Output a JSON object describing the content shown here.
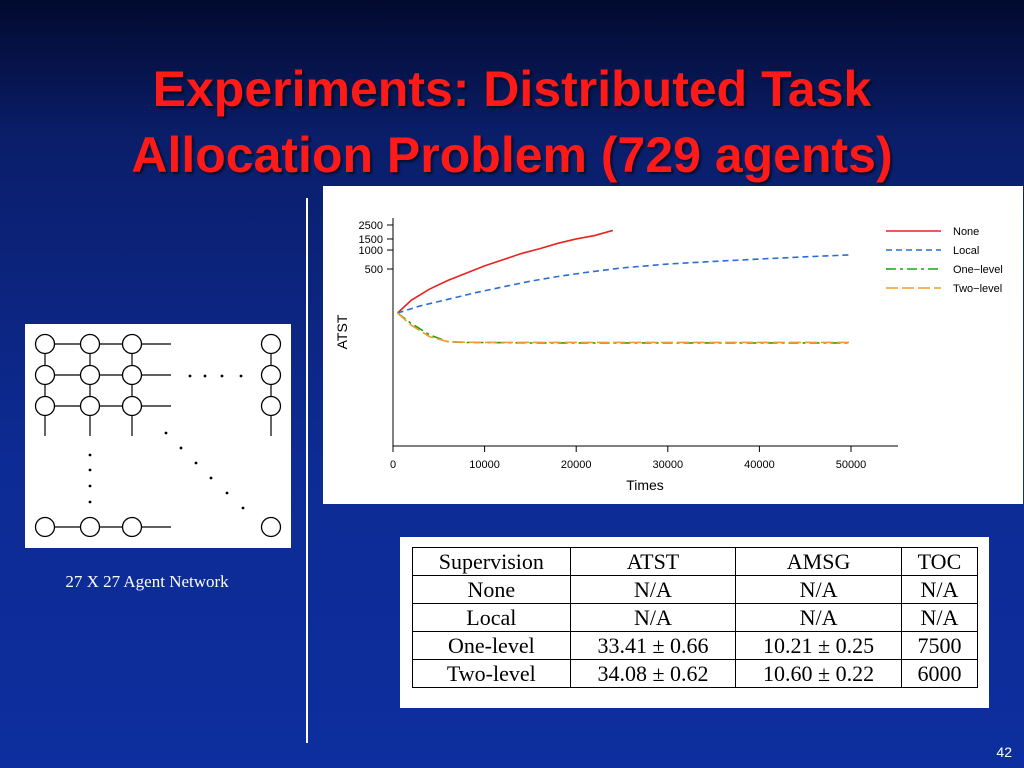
{
  "slide": {
    "title_line1": "Experiments: Distributed Task",
    "title_line2": "Allocation Problem (729 agents)",
    "network_caption": "27 X 27 Agent Network",
    "page_number": "42"
  },
  "colors": {
    "title": "#ff1a1a",
    "background": "#0d2b94",
    "none": "#e8231f",
    "local": "#2a6fd0",
    "one_level": "#1aa51a",
    "two_level": "#f59a2a"
  },
  "chart_data": {
    "type": "line",
    "xlabel": "Times",
    "ylabel": "ATST",
    "xlim": [
      0,
      55000
    ],
    "xticks": [
      0,
      10000,
      20000,
      30000,
      40000,
      50000
    ],
    "xtick_labels": [
      "0",
      "10000",
      "20000",
      "30000",
      "40000",
      "50000"
    ],
    "ylim": [
      0,
      3000
    ],
    "yscale": "log",
    "yticks": [
      2500,
      1500,
      1000,
      500
    ],
    "ytick_labels": [
      "2500",
      "1500",
      "1000",
      "500"
    ],
    "legend_position": "top-right",
    "series": [
      {
        "name": "None",
        "style": "solid",
        "x": [
          500,
          2000,
          4000,
          6000,
          8000,
          10000,
          12000,
          14000,
          16000,
          18000,
          20000,
          22000,
          24000
        ],
        "y": [
          100,
          160,
          240,
          330,
          430,
          560,
          700,
          880,
          1050,
          1280,
          1500,
          1700,
          2050
        ]
      },
      {
        "name": "Local",
        "style": "dashed",
        "x": [
          500,
          3000,
          6000,
          9000,
          12000,
          15000,
          18000,
          21000,
          25000,
          30000,
          35000,
          40000,
          45000,
          50000
        ],
        "y": [
          100,
          130,
          165,
          210,
          260,
          320,
          380,
          440,
          520,
          600,
          660,
          720,
          780,
          840
        ]
      },
      {
        "name": "One−level",
        "style": "dashdot",
        "x": [
          500,
          2000,
          4000,
          6000,
          8000,
          10000,
          15000,
          20000,
          30000,
          40000,
          50000
        ],
        "y": [
          100,
          68,
          45,
          35,
          34,
          34,
          33.5,
          33.5,
          33.4,
          33.4,
          33.4
        ]
      },
      {
        "name": "Two−level",
        "style": "longdash",
        "x": [
          500,
          2000,
          4000,
          6000,
          8000,
          10000,
          15000,
          20000,
          30000,
          40000,
          50000
        ],
        "y": [
          100,
          64,
          42,
          35,
          34.3,
          34.1,
          34.1,
          34.1,
          34.08,
          34.08,
          34.08
        ]
      }
    ]
  },
  "results_table": {
    "headers": [
      "Supervision",
      "ATST",
      "AMSG",
      "TOC"
    ],
    "rows": [
      [
        "None",
        "N/A",
        "N/A",
        "N/A"
      ],
      [
        "Local",
        "N/A",
        "N/A",
        "N/A"
      ],
      [
        "One-level",
        "33.41 ± 0.66",
        "10.21 ± 0.25",
        "7500"
      ],
      [
        "Two-level",
        "34.08 ± 0.62",
        "10.60 ± 0.22",
        "6000"
      ]
    ]
  }
}
